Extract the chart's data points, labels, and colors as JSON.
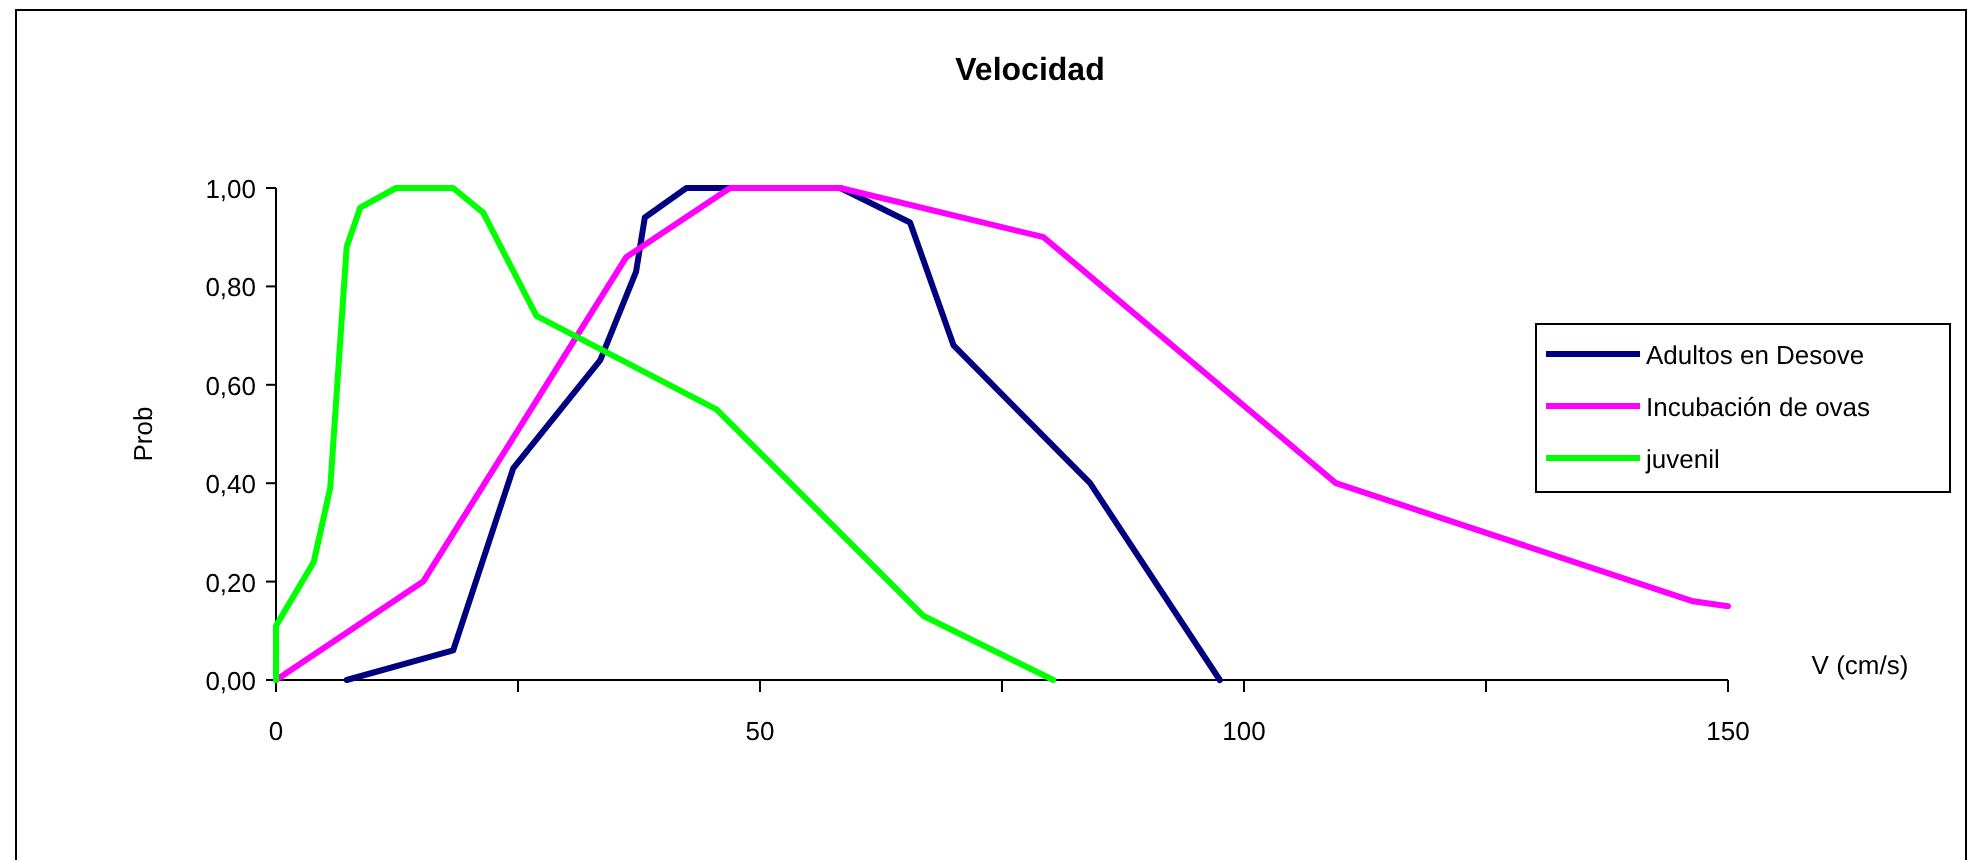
{
  "chart_data": {
    "type": "line",
    "title": "Velocidad",
    "xlabel": "V (cm/s)",
    "ylabel": "Prob",
    "xlim": [
      0,
      150
    ],
    "xticks": [
      0,
      {
        "value": 25,
        "label": null
      },
      50,
      {
        "value": 75,
        "label": null
      },
      100,
      {
        "value": 125,
        "label": null
      },
      150
    ],
    "ylim": [
      0,
      1
    ],
    "yticks": [
      {
        "value": 0,
        "label": "0,00"
      },
      {
        "value": 0.2,
        "label": "0,20"
      },
      {
        "value": 0.4,
        "label": "0,40"
      },
      {
        "value": 0.6,
        "label": "0,60"
      },
      {
        "value": 0.8,
        "label": "0,80"
      },
      {
        "value": 1,
        "label": "1,00"
      }
    ],
    "grid": false,
    "legend": "right",
    "marker": "none",
    "line_style": "solid",
    "series": [
      {
        "name": "Adultos en Desove",
        "color": "#000080",
        "x": [
          7.3,
          18.3,
          24.5,
          33.5,
          37.2,
          38.1,
          42.4,
          58.3,
          65.5,
          70,
          84.1,
          97.5
        ],
        "values": [
          0,
          0.06,
          0.43,
          0.65,
          0.83,
          0.94,
          1,
          1,
          0.93,
          0.68,
          0.4,
          0
        ]
      },
      {
        "name": "Incubación de ovas",
        "color": "#ff00ff",
        "x": [
          0,
          15.2,
          36.2,
          46.9,
          58.3,
          79.3,
          109.5,
          146.4,
          150
        ],
        "values": [
          0,
          0.2,
          0.86,
          1,
          1,
          0.9,
          0.4,
          0.16,
          0.15
        ]
      },
      {
        "name": "juvenil",
        "color": "#00ff00",
        "x": [
          0,
          0,
          3.9,
          5.6,
          7.3,
          8.7,
          12.4,
          18.3,
          21.4,
          26.9,
          45.5,
          66.9,
          80.3
        ],
        "values": [
          0,
          0.11,
          0.24,
          0.39,
          0.88,
          0.96,
          1,
          1,
          0.95,
          0.74,
          0.55,
          0.13,
          0
        ]
      }
    ]
  }
}
